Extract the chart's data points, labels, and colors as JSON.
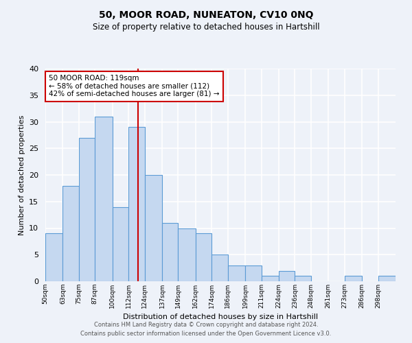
{
  "title": "50, MOOR ROAD, NUNEATON, CV10 0NQ",
  "subtitle": "Size of property relative to detached houses in Hartshill",
  "xlabel": "Distribution of detached houses by size in Hartshill",
  "ylabel": "Number of detached properties",
  "bin_edges": [
    50,
    63,
    75,
    87,
    100,
    112,
    124,
    137,
    149,
    162,
    174,
    186,
    199,
    211,
    224,
    236,
    248,
    261,
    273,
    286,
    298,
    311
  ],
  "counts": [
    9,
    18,
    27,
    31,
    14,
    29,
    20,
    11,
    10,
    9,
    5,
    3,
    3,
    1,
    2,
    1,
    0,
    0,
    1,
    0,
    1
  ],
  "bar_color": "#c5d8f0",
  "bar_edge_color": "#5b9bd5",
  "vline_x": 119,
  "vline_color": "#cc0000",
  "annotation_line1": "50 MOOR ROAD: 119sqm",
  "annotation_line2": "← 58% of detached houses are smaller (112)",
  "annotation_line3": "42% of semi-detached houses are larger (81) →",
  "annotation_box_color": "white",
  "annotation_box_edge_color": "#cc0000",
  "ylim": [
    0,
    40
  ],
  "yticks": [
    0,
    5,
    10,
    15,
    20,
    25,
    30,
    35,
    40
  ],
  "tick_labels": [
    "50sqm",
    "63sqm",
    "75sqm",
    "87sqm",
    "100sqm",
    "112sqm",
    "124sqm",
    "137sqm",
    "149sqm",
    "162sqm",
    "174sqm",
    "186sqm",
    "199sqm",
    "211sqm",
    "224sqm",
    "236sqm",
    "248sqm",
    "261sqm",
    "273sqm",
    "286sqm",
    "298sqm"
  ],
  "footnote1": "Contains HM Land Registry data © Crown copyright and database right 2024.",
  "footnote2": "Contains public sector information licensed under the Open Government Licence v3.0.",
  "background_color": "#eef2f9",
  "grid_color": "white"
}
